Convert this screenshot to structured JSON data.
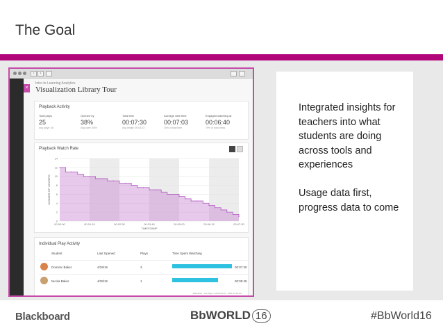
{
  "slide": {
    "title": "The Goal",
    "footer_left": "Blackboard",
    "footer_center_text": "BbWORLD",
    "footer_center_num": "16",
    "footer_right": "#BbWorld16",
    "accent_color": "#b3057a"
  },
  "description": {
    "paragraph1": "Integrated insights for teachers into what students are doing across tools and experiences",
    "paragraph2": "Usage data first, progress data to come"
  },
  "app": {
    "breadcrumb": "Intro to Learning Analytics",
    "title": "Visualization Library Tour",
    "close_glyph": "×",
    "playback": {
      "heading": "Playback Activity",
      "stats": [
        {
          "label": "Total plays",
          "value": "25",
          "sub": "Avg plays: 48"
        },
        {
          "label": "Opened by",
          "value": "38%",
          "sub": "Avg open: 55%"
        },
        {
          "label": "Total time",
          "value": "00:07:30",
          "sub": "Avg length: 00:03:23"
        },
        {
          "label": "Average view time",
          "value": "00:07:03",
          "sub": "15% of total time"
        },
        {
          "label": "Engaged watching at",
          "value": "00:06:40",
          "sub": "75% of total views"
        }
      ]
    },
    "chart_card": {
      "heading": "Playback Watch Rate"
    },
    "individual": {
      "heading": "Individual Play Activity",
      "columns": [
        "Student",
        "Last Opened",
        "Plays",
        "Time Spent Watching"
      ],
      "rows": [
        {
          "student": "Dominic Baker",
          "last_opened": "4/29/16",
          "plays": "3",
          "time": "00:07:30",
          "bar_fraction": 1.0
        },
        {
          "student": "Nicola Baker",
          "last_opened": "4/29/16",
          "plays": "1",
          "time": "00:05:45",
          "bar_fraction": 0.77
        }
      ]
    },
    "status_text": "ENGAGE · Tue May 17 2016 09:15 · UNIT 01-4X-0A"
  },
  "chart_data": {
    "type": "area",
    "title": "Playback Watch Rate",
    "xlabel": "TIMESTAMP",
    "ylabel": "NUMBER OF VIEWERS",
    "x_tick_labels": [
      "00:00:00",
      "00:01:15",
      "00:02:30",
      "00:03:45",
      "00:05:00",
      "00:06:15",
      "00:07:30"
    ],
    "y_tick_labels": [
      "0",
      "2",
      "4",
      "6",
      "8",
      "10",
      "12",
      "14"
    ],
    "ylim": [
      0,
      14
    ],
    "x_seconds": [
      0,
      15,
      30,
      45,
      60,
      75,
      90,
      105,
      120,
      135,
      150,
      165,
      180,
      195,
      210,
      225,
      240,
      255,
      270,
      285,
      300,
      315,
      330,
      345,
      360,
      375,
      390,
      405,
      420,
      435,
      450
    ],
    "values": [
      12,
      11,
      11,
      10.5,
      10,
      10,
      9.5,
      9.5,
      9,
      9,
      8.5,
      8.5,
      8,
      7.5,
      7.5,
      7,
      7,
      6.5,
      6,
      6,
      5.5,
      5,
      4.5,
      4.5,
      4,
      3.5,
      3,
      2.5,
      2,
      1.5,
      1
    ],
    "series_color": "#c987d4",
    "grid": true
  }
}
